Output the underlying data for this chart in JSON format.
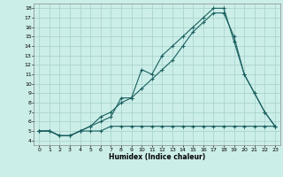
{
  "bg_color": "#cceee8",
  "grid_color": "#aad4ce",
  "line_color": "#1a6060",
  "xlabel": "Humidex (Indice chaleur)",
  "xlim": [
    -0.5,
    23.5
  ],
  "ylim": [
    3.5,
    18.5
  ],
  "xticks": [
    0,
    1,
    2,
    3,
    4,
    5,
    6,
    7,
    8,
    9,
    10,
    11,
    12,
    13,
    14,
    15,
    16,
    17,
    18,
    19,
    20,
    21,
    22,
    23
  ],
  "yticks": [
    4,
    5,
    6,
    7,
    8,
    9,
    10,
    11,
    12,
    13,
    14,
    15,
    16,
    17,
    18
  ],
  "curve1_x": [
    0,
    1,
    2,
    3,
    4,
    5,
    6,
    7,
    8,
    9,
    10,
    11,
    12,
    13,
    14,
    15,
    16,
    17,
    18,
    19,
    20,
    21,
    22,
    23
  ],
  "curve1_y": [
    5.0,
    5.0,
    4.5,
    4.5,
    5.0,
    5.5,
    6.0,
    6.5,
    8.5,
    8.5,
    11.5,
    11.0,
    13.0,
    14.0,
    15.0,
    16.0,
    17.0,
    18.0,
    18.0,
    14.5,
    11.0,
    9.0,
    7.0,
    5.5
  ],
  "curve2_x": [
    0,
    1,
    2,
    3,
    4,
    5,
    6,
    7,
    8,
    9,
    10,
    11,
    12,
    13,
    14,
    15,
    16,
    17,
    18,
    19,
    20,
    21,
    22,
    23
  ],
  "curve2_y": [
    5.0,
    5.0,
    4.5,
    4.5,
    5.0,
    5.5,
    6.5,
    7.0,
    8.0,
    8.5,
    9.5,
    10.5,
    11.5,
    12.5,
    14.0,
    15.5,
    16.5,
    17.5,
    17.5,
    15.0,
    11.0,
    9.0,
    7.0,
    5.5
  ],
  "curve3_x": [
    0,
    1,
    2,
    3,
    4,
    5,
    6,
    7,
    8,
    9,
    10,
    11,
    12,
    13,
    14,
    15,
    16,
    17,
    18,
    19,
    20,
    21,
    22,
    23
  ],
  "curve3_y": [
    5.0,
    5.0,
    4.5,
    4.5,
    5.0,
    5.0,
    5.0,
    5.5,
    5.5,
    5.5,
    5.5,
    5.5,
    5.5,
    5.5,
    5.5,
    5.5,
    5.5,
    5.5,
    5.5,
    5.5,
    5.5,
    5.5,
    5.5,
    5.5
  ]
}
